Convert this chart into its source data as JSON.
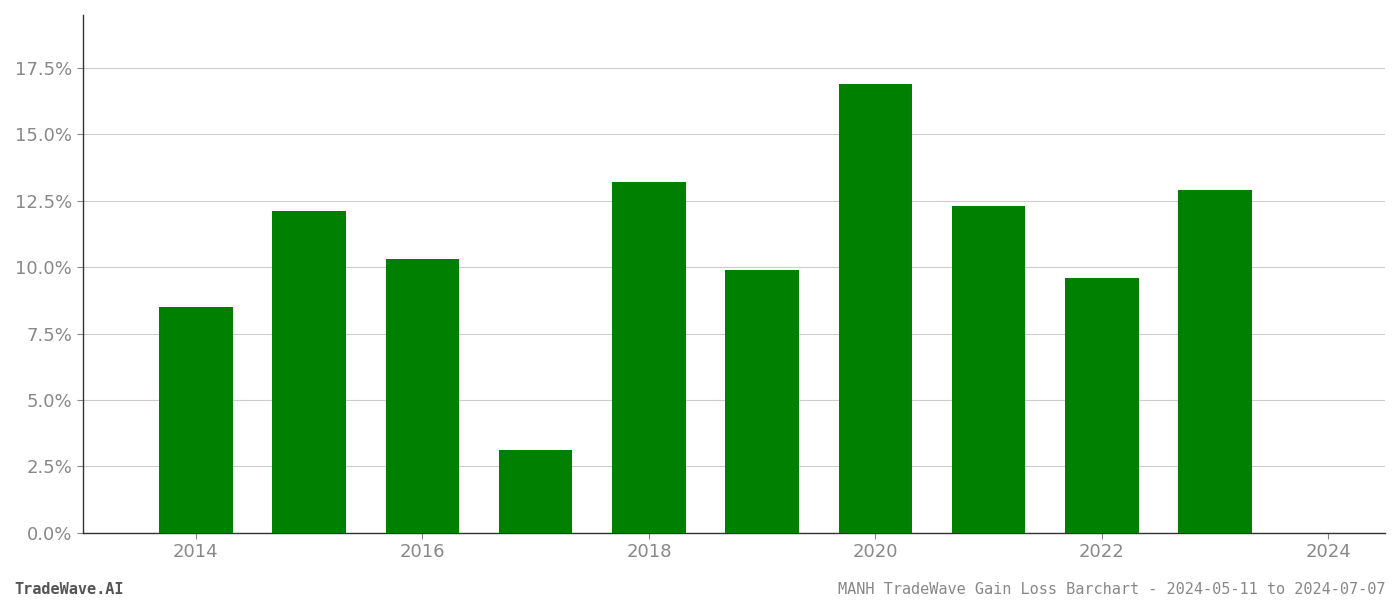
{
  "years": [
    2014,
    2015,
    2016,
    2017,
    2018,
    2019,
    2020,
    2021,
    2022,
    2023
  ],
  "values": [
    0.085,
    0.121,
    0.103,
    0.031,
    0.132,
    0.099,
    0.169,
    0.123,
    0.096,
    0.129
  ],
  "bar_color": "#008000",
  "background_color": "#ffffff",
  "grid_color": "#cccccc",
  "ylim": [
    0,
    0.195
  ],
  "yticks": [
    0.0,
    0.025,
    0.05,
    0.075,
    0.1,
    0.125,
    0.15,
    0.175
  ],
  "ytick_labels": [
    "0.0%",
    "2.5%",
    "5.0%",
    "7.5%",
    "10.0%",
    "12.5%",
    "15.0%",
    "17.5%"
  ],
  "footer_left": "TradeWave.AI",
  "footer_right": "MANH TradeWave Gain Loss Barchart - 2024-05-11 to 2024-07-07",
  "footer_fontsize": 11,
  "tick_fontsize": 13,
  "spine_color": "#333333",
  "bar_width": 0.65,
  "xlim": [
    2013.0,
    2024.5
  ],
  "xticks": [
    2014,
    2016,
    2018,
    2020,
    2022,
    2024
  ],
  "xtick_labels": [
    "2014",
    "2016",
    "2018",
    "2020",
    "2022",
    "2024"
  ]
}
